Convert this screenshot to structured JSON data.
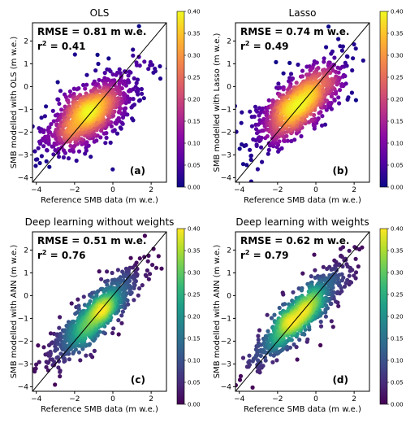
{
  "chart_data": [
    {
      "type": "scatter",
      "title": "OLS",
      "xlabel": "Reference SMB data (m w.e.)",
      "ylabel": "SMB modelled with OLS (m w.e.)",
      "xlim": [
        -4.2,
        2.8
      ],
      "ylim": [
        -4.2,
        2.8
      ],
      "xticks": [
        -4,
        -2,
        0,
        2
      ],
      "yticks": [
        -4,
        -3,
        -2,
        -1,
        0,
        1,
        2
      ],
      "rmse_text": "RMSE = 0.81 m w.e.",
      "r2_label": "r",
      "r2_value": "= 0.41",
      "panel_tag": "(a)",
      "colormap": "plasma",
      "colorbar": {
        "min": 0.0,
        "max": 0.4,
        "ticks": [
          "0.00",
          "0.05",
          "0.10",
          "0.15",
          "0.20",
          "0.25",
          "0.30",
          "0.35",
          "0.40"
        ]
      },
      "cloud": {
        "center_x": -1.2,
        "center_y": -1.2,
        "sd_x": 1.05,
        "sd_y": 0.75,
        "corr": 0.64,
        "slope_like": 0.45,
        "count": 1100,
        "seed": 11
      },
      "one_to_one_line": true
    },
    {
      "type": "scatter",
      "title": "Lasso",
      "xlabel": "Reference SMB data (m w.e.)",
      "ylabel": "SMB modelled with Lasso (m w.e.)",
      "xlim": [
        -4.2,
        2.8
      ],
      "ylim": [
        -4.2,
        2.8
      ],
      "xticks": [
        -4,
        -2,
        0,
        2
      ],
      "yticks": [
        -4,
        -3,
        -2,
        -1,
        0,
        1,
        2
      ],
      "rmse_text": "RMSE = 0.74 m w.e.",
      "r2_label": "r",
      "r2_value": "= 0.49",
      "panel_tag": "(b)",
      "colormap": "plasma",
      "colorbar": {
        "min": 0.0,
        "max": 0.4,
        "ticks": [
          "0.00",
          "0.05",
          "0.10",
          "0.15",
          "0.20",
          "0.25",
          "0.30",
          "0.35",
          "0.40"
        ]
      },
      "cloud": {
        "center_x": -0.9,
        "center_y": -0.8,
        "sd_x": 1.0,
        "sd_y": 0.8,
        "corr": 0.7,
        "slope_like": 0.55,
        "count": 1100,
        "seed": 23
      },
      "one_to_one_line": true
    },
    {
      "type": "scatter",
      "title": "Deep learning without weights",
      "xlabel": "Reference SMB data (m w.e.)",
      "ylabel": "SMB modelled with ANN (m w.e.)",
      "xlim": [
        -4.2,
        2.8
      ],
      "ylim": [
        -4.2,
        2.8
      ],
      "xticks": [
        -4,
        -2,
        0,
        2
      ],
      "yticks": [
        -4,
        -3,
        -2,
        -1,
        0,
        1,
        2
      ],
      "rmse_text": "RMSE = 0.51 m w.e.",
      "r2_label": "r",
      "r2_value": "= 0.76",
      "panel_tag": "(c)",
      "colormap": "viridis",
      "colorbar": {
        "min": 0.0,
        "max": 0.4,
        "ticks": [
          "0.00",
          "0.05",
          "0.10",
          "0.15",
          "0.20",
          "0.25",
          "0.30",
          "0.35",
          "0.40"
        ]
      },
      "cloud": {
        "center_x": -0.9,
        "center_y": -0.9,
        "sd_x": 1.0,
        "sd_y": 0.85,
        "corr": 0.87,
        "slope_like": 0.8,
        "count": 1100,
        "seed": 37
      },
      "one_to_one_line": true
    },
    {
      "type": "scatter",
      "title": "Deep learning with weights",
      "xlabel": "Reference SMB data (m w.e.)",
      "ylabel": "SMB modelled with ANN (m w.e.)",
      "xlim": [
        -4.2,
        2.8
      ],
      "ylim": [
        -4.2,
        2.8
      ],
      "xticks": [
        -4,
        -2,
        0,
        2
      ],
      "yticks": [
        -4,
        -3,
        -2,
        -1,
        0,
        1,
        2
      ],
      "rmse_text": "RMSE = 0.62 m w.e.",
      "r2_label": "r",
      "r2_value": "= 0.79",
      "panel_tag": "(d)",
      "colormap": "viridis",
      "colorbar": {
        "min": 0.0,
        "max": 0.4,
        "ticks": [
          "0.00",
          "0.05",
          "0.10",
          "0.15",
          "0.20",
          "0.25",
          "0.30",
          "0.35",
          "0.40"
        ]
      },
      "cloud": {
        "center_x": -0.8,
        "center_y": -0.8,
        "sd_x": 1.05,
        "sd_y": 0.95,
        "corr": 0.89,
        "slope_like": 0.9,
        "count": 1100,
        "seed": 53
      },
      "one_to_one_line": true
    }
  ]
}
